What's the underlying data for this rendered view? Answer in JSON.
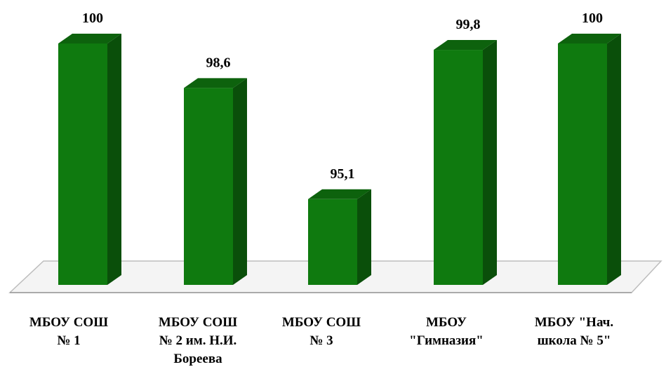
{
  "chart_data": {
    "type": "bar",
    "categories": [
      [
        "МБОУ СОШ",
        "№ 1"
      ],
      [
        "МБОУ СОШ",
        "№ 2 им. Н.И.",
        "Бореева"
      ],
      [
        "МБОУ СОШ",
        "№ 3"
      ],
      [
        "МБОУ",
        "\"Гимназия\""
      ],
      [
        "МБОУ \"Нач.",
        "школа № 5\""
      ]
    ],
    "values": [
      100,
      98.6,
      95.1,
      99.8,
      100
    ],
    "value_labels": [
      "100",
      "98,6",
      "95,1",
      "99,8",
      "100"
    ],
    "ylim": [
      92.4,
      100
    ],
    "grid": false,
    "legend": false,
    "bar_color": "#0f7a0f",
    "bar_side_color": "#0a4f0a",
    "bar_top_color": "#0d620d",
    "floor_color": "#f4f4f4"
  }
}
